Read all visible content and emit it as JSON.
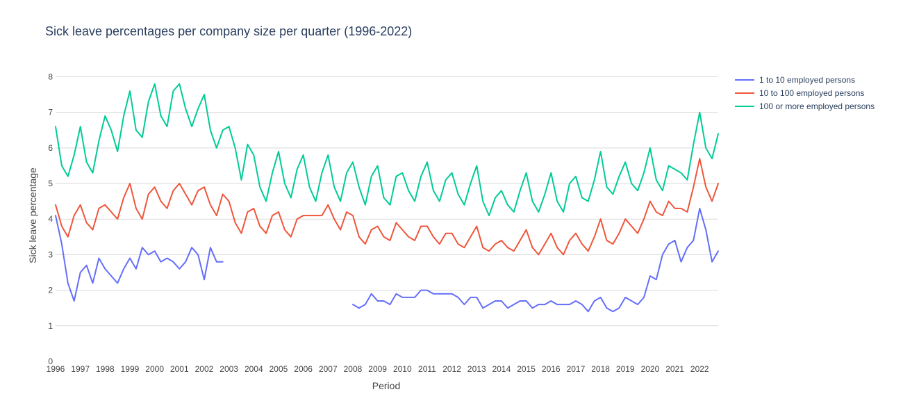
{
  "chart_data": {
    "type": "line",
    "title": "Sick leave percentages per company size per quarter (1996-2022)",
    "xlabel": "Period",
    "ylabel": "Sick leave percentage",
    "ylim": [
      0,
      8.4
    ],
    "xlim": [
      1996,
      2022.75
    ],
    "yticks": [
      0,
      1,
      2,
      3,
      4,
      5,
      6,
      7,
      8
    ],
    "xticks": [
      "1996",
      "1997",
      "1998",
      "1999",
      "2000",
      "2001",
      "2002",
      "2003",
      "2004",
      "2005",
      "2006",
      "2007",
      "2008",
      "2009",
      "2010",
      "2011",
      "2012",
      "2013",
      "2014",
      "2015",
      "2016",
      "2017",
      "2018",
      "2019",
      "2020",
      "2021",
      "2022"
    ],
    "grid": "horizontal",
    "legend_position": "top-right",
    "x_start_year": 1996,
    "series": [
      {
        "name": "1 to 10 employed persons",
        "color": "#636efa",
        "values": [
          4.1,
          3.3,
          2.2,
          1.7,
          2.5,
          2.7,
          2.2,
          2.9,
          2.6,
          2.4,
          2.2,
          2.6,
          2.9,
          2.6,
          3.2,
          3.0,
          3.1,
          2.8,
          2.9,
          2.8,
          2.6,
          2.8,
          3.2,
          3.0,
          2.3,
          3.2,
          2.8,
          2.8,
          null,
          null,
          null,
          null,
          null,
          null,
          null,
          null,
          null,
          null,
          null,
          null,
          null,
          null,
          null,
          null,
          null,
          null,
          null,
          null,
          1.6,
          1.5,
          1.6,
          1.9,
          1.7,
          1.7,
          1.6,
          1.9,
          1.8,
          1.8,
          1.8,
          2.0,
          2.0,
          1.9,
          1.9,
          1.9,
          1.9,
          1.8,
          1.6,
          1.8,
          1.8,
          1.5,
          1.6,
          1.7,
          1.7,
          1.5,
          1.6,
          1.7,
          1.7,
          1.5,
          1.6,
          1.6,
          1.7,
          1.6,
          1.6,
          1.6,
          1.7,
          1.6,
          1.4,
          1.7,
          1.8,
          1.5,
          1.4,
          1.5,
          1.8,
          1.7,
          1.6,
          1.8,
          2.4,
          2.3,
          3.0,
          3.3,
          3.4,
          2.8,
          3.2,
          3.4,
          4.3,
          3.7,
          2.8,
          3.1
        ]
      },
      {
        "name": "10 to 100 employed persons",
        "color": "#ef553b",
        "values": [
          4.4,
          3.8,
          3.5,
          4.1,
          4.4,
          3.9,
          3.7,
          4.3,
          4.4,
          4.2,
          4.0,
          4.6,
          5.0,
          4.3,
          4.0,
          4.7,
          4.9,
          4.5,
          4.3,
          4.8,
          5.0,
          4.7,
          4.4,
          4.8,
          4.9,
          4.4,
          4.1,
          4.7,
          4.5,
          3.9,
          3.6,
          4.2,
          4.3,
          3.8,
          3.6,
          4.1,
          4.2,
          3.7,
          3.5,
          4.0,
          4.1,
          4.1,
          4.1,
          4.1,
          4.4,
          4.0,
          3.7,
          4.2,
          4.1,
          3.5,
          3.3,
          3.7,
          3.8,
          3.5,
          3.4,
          3.9,
          3.7,
          3.5,
          3.4,
          3.8,
          3.8,
          3.5,
          3.3,
          3.6,
          3.6,
          3.3,
          3.2,
          3.5,
          3.8,
          3.2,
          3.1,
          3.3,
          3.4,
          3.2,
          3.1,
          3.4,
          3.7,
          3.2,
          3.0,
          3.3,
          3.6,
          3.2,
          3.0,
          3.4,
          3.6,
          3.3,
          3.1,
          3.5,
          4.0,
          3.4,
          3.3,
          3.6,
          4.0,
          3.8,
          3.6,
          4.0,
          4.5,
          4.2,
          4.1,
          4.5,
          4.3,
          4.3,
          4.2,
          4.9,
          5.7,
          4.9,
          4.5,
          5.0
        ]
      },
      {
        "name": "100 or more employed persons",
        "color": "#00cc96",
        "values": [
          6.6,
          5.5,
          5.2,
          5.8,
          6.6,
          5.6,
          5.3,
          6.2,
          6.9,
          6.5,
          5.9,
          6.9,
          7.6,
          6.5,
          6.3,
          7.3,
          7.8,
          6.9,
          6.6,
          7.6,
          7.8,
          7.1,
          6.6,
          7.1,
          7.5,
          6.5,
          6.0,
          6.5,
          6.6,
          6.0,
          5.1,
          6.1,
          5.8,
          4.9,
          4.5,
          5.3,
          5.9,
          5.0,
          4.6,
          5.4,
          5.8,
          4.9,
          4.5,
          5.3,
          5.8,
          4.9,
          4.5,
          5.3,
          5.6,
          4.9,
          4.4,
          5.2,
          5.5,
          4.6,
          4.4,
          5.2,
          5.3,
          4.8,
          4.5,
          5.2,
          5.6,
          4.8,
          4.5,
          5.1,
          5.3,
          4.7,
          4.4,
          5.0,
          5.5,
          4.5,
          4.1,
          4.6,
          4.8,
          4.4,
          4.2,
          4.8,
          5.3,
          4.5,
          4.2,
          4.7,
          5.3,
          4.5,
          4.2,
          5.0,
          5.2,
          4.6,
          4.5,
          5.1,
          5.9,
          4.9,
          4.7,
          5.2,
          5.6,
          5.0,
          4.8,
          5.3,
          6.0,
          5.1,
          4.8,
          5.5,
          5.4,
          5.3,
          5.1,
          6.1,
          7.0,
          6.0,
          5.7,
          6.4
        ]
      }
    ]
  }
}
